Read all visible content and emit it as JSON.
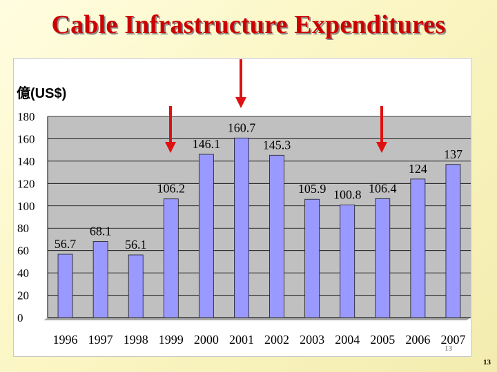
{
  "slide": {
    "title": "Cable Infrastructure Expenditures",
    "inner_page_number": "13",
    "slide_number": "13"
  },
  "chart_data": {
    "type": "bar",
    "title": "Cable Infrastructure Expenditures",
    "ylabel": "億(US$)",
    "xlabel": "",
    "categories": [
      "1996",
      "1997",
      "1998",
      "1999",
      "2000",
      "2001",
      "2002",
      "2003",
      "2004",
      "2005",
      "2006",
      "2007"
    ],
    "values": [
      56.7,
      68.1,
      56.1,
      106.2,
      146.1,
      160.7,
      145.3,
      105.9,
      100.8,
      106.4,
      124,
      137
    ],
    "labels": [
      "56.7",
      "68.1",
      "56.1",
      "106.2",
      "146.1",
      "160.7",
      "145.3",
      "105.9",
      "100.8",
      "106.4",
      "124",
      "137"
    ],
    "ylim": [
      0,
      180
    ],
    "yticks": [
      0,
      20,
      40,
      60,
      80,
      100,
      120,
      140,
      160,
      180
    ],
    "grid": true,
    "bar_color": "#9999ff",
    "plot_bg": "#c0c0c0",
    "highlighted_years": [
      "1999",
      "2001",
      "2005"
    ],
    "arrow_color": "#e01010"
  }
}
